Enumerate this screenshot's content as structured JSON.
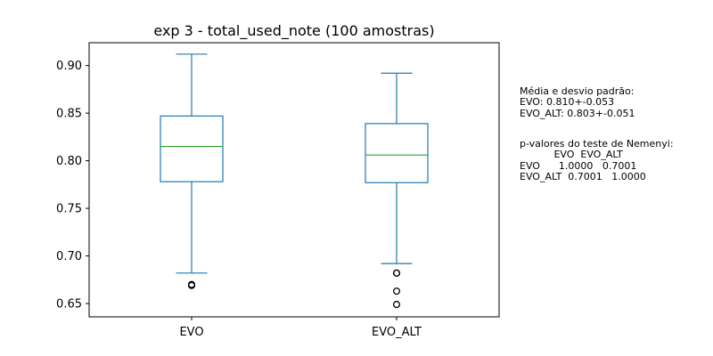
{
  "chart_data": {
    "type": "box",
    "title": "exp 3 - total_used_note (100 amostras)",
    "xlabel": "",
    "ylabel": "",
    "categories": [
      "EVO",
      "EVO_ALT"
    ],
    "ylim": [
      0.636,
      0.924
    ],
    "yticks": [
      0.65,
      0.7,
      0.75,
      0.8,
      0.85,
      0.9
    ],
    "ytick_labels": [
      "0.65",
      "0.70",
      "0.75",
      "0.80",
      "0.85",
      "0.90"
    ],
    "grid": false,
    "box_color": "#1f77b4",
    "median_color": "#2ca02c",
    "series": [
      {
        "category": "EVO",
        "whisker_low": 0.682,
        "q1": 0.778,
        "median": 0.815,
        "q3": 0.847,
        "whisker_high": 0.912,
        "outliers": [
          0.67,
          0.669
        ]
      },
      {
        "category": "EVO_ALT",
        "whisker_low": 0.692,
        "q1": 0.777,
        "median": 0.806,
        "q3": 0.839,
        "whisker_high": 0.892,
        "outliers": [
          0.682,
          0.682,
          0.663,
          0.649
        ]
      }
    ],
    "annotations": {
      "stats_text": "Média e desvio padrão:\nEVO: 0.810+-0.053\nEVO_ALT: 0.803+-0.051",
      "nemenyi_text": "p-valores do teste de Nemenyi:\n           EVO  EVO_ALT\nEVO      1.0000   0.7001\nEVO_ALT  0.7001   1.0000"
    }
  }
}
